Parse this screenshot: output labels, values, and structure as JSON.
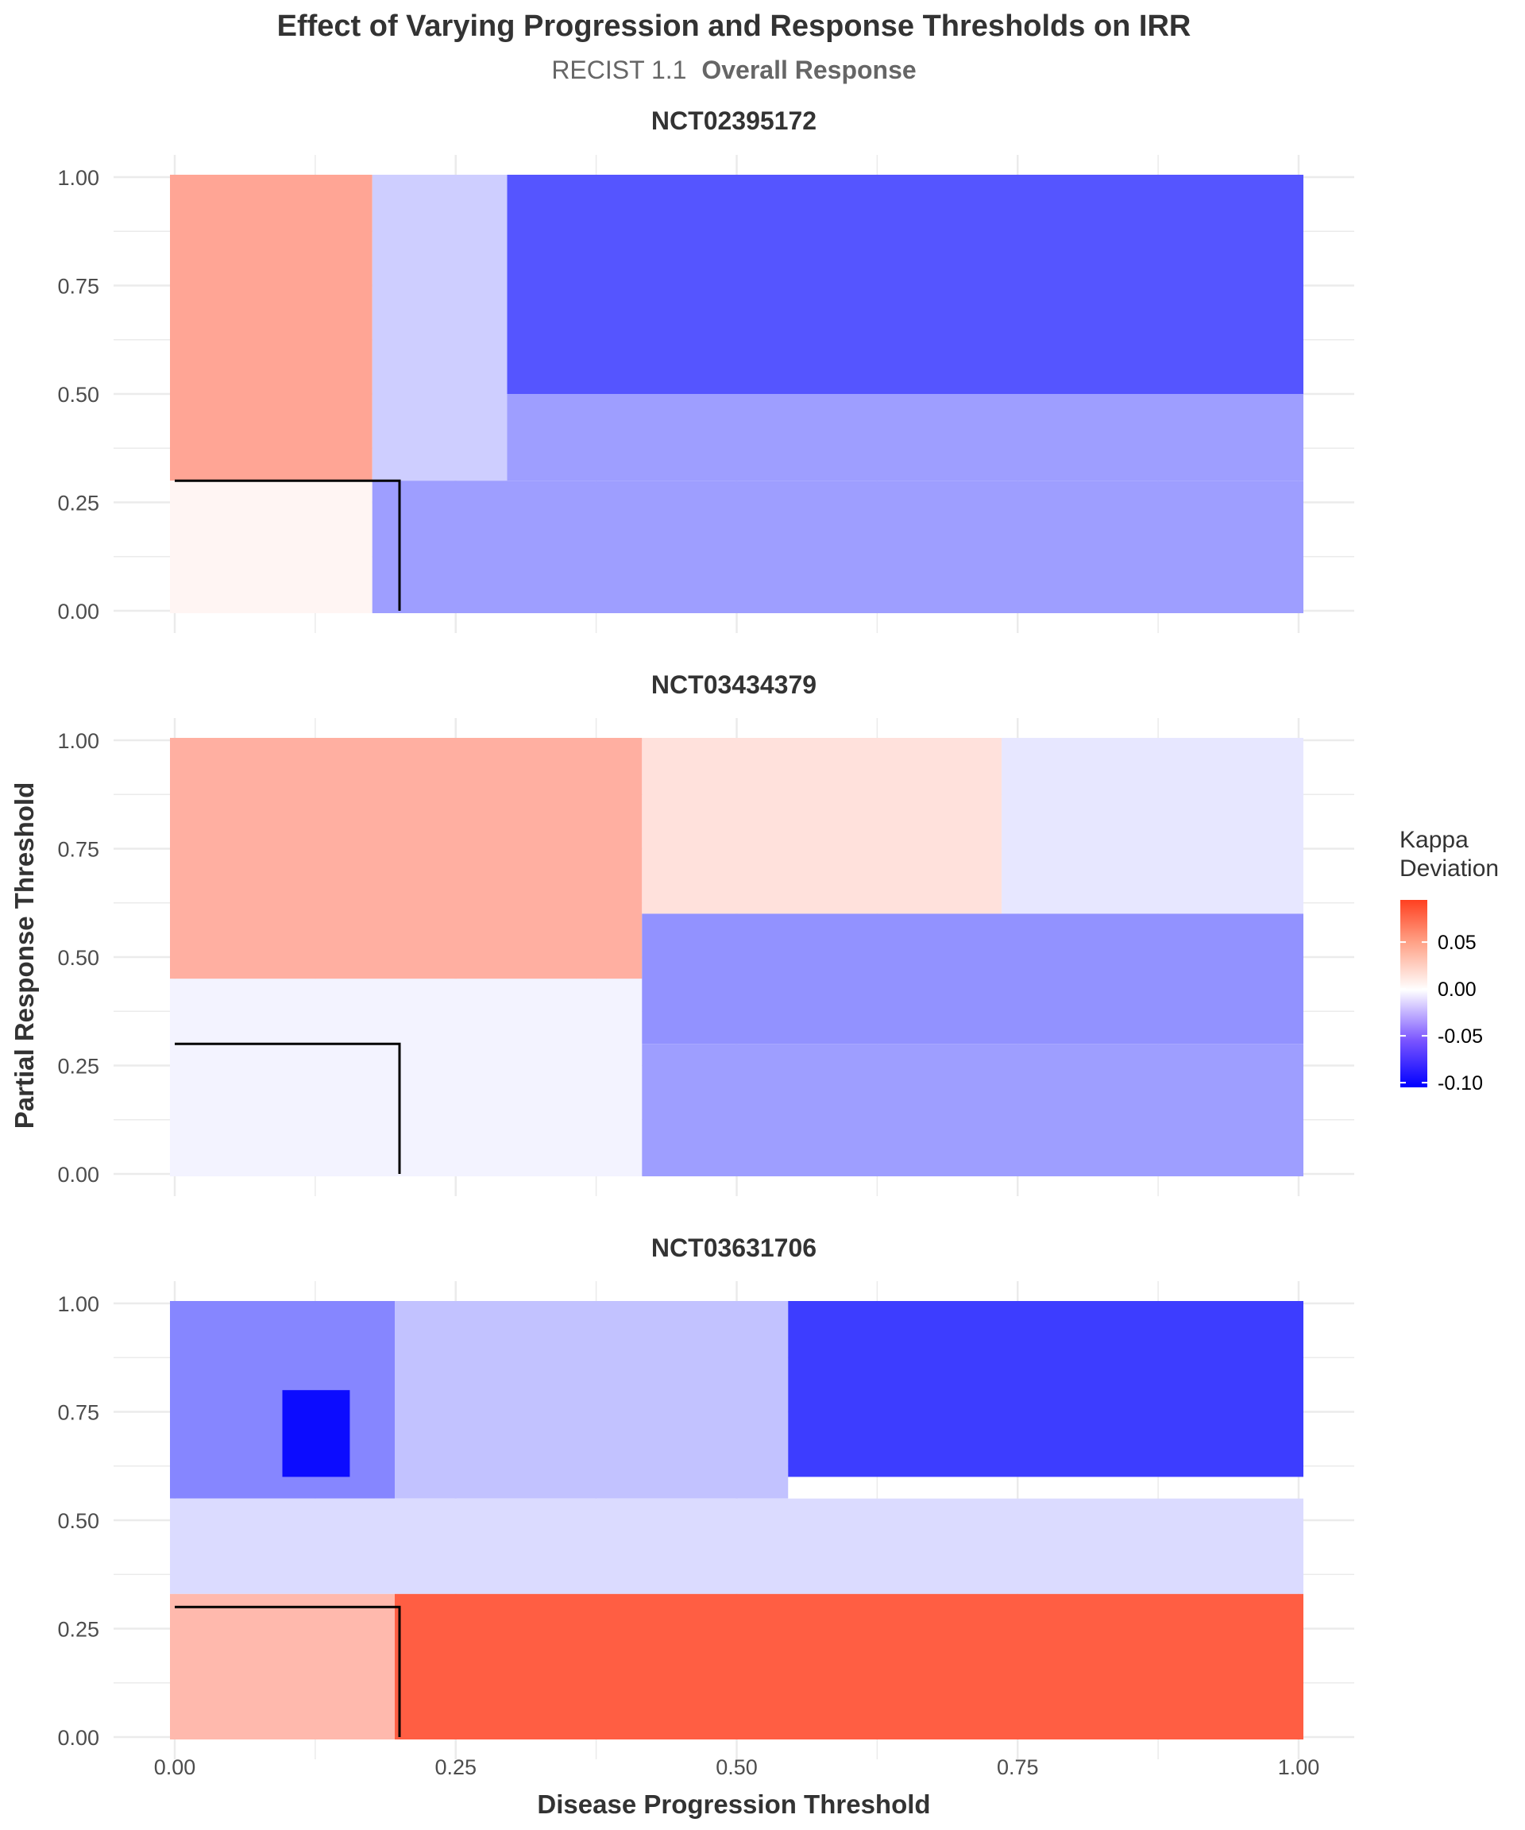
{
  "chart_data": {
    "type": "heatmap",
    "title": "Effect of Varying Progression and Response Thresholds on IRR",
    "subtitle_plain": "RECIST 1.1",
    "subtitle_bold": "Overall Response",
    "xlabel": "Disease Progression Threshold",
    "ylabel": "Partial Response Threshold",
    "xlim": [
      0,
      1
    ],
    "ylim": [
      0,
      1
    ],
    "x_ticks": [
      "0.00",
      "0.25",
      "0.50",
      "0.75",
      "1.00"
    ],
    "y_ticks": [
      "0.00",
      "0.25",
      "0.50",
      "0.75",
      "1.00"
    ],
    "grid": true,
    "legend": {
      "title_line1": "Kappa",
      "title_line2": "Deviation",
      "labels": [
        "0.05",
        "0.00",
        "-0.05",
        "-0.10"
      ],
      "values": [
        0.05,
        0.0,
        -0.05,
        -0.1
      ],
      "min": -0.105,
      "max": 0.095,
      "placement": "right",
      "low_color": "#0000FF",
      "mid_color": "#FFFFFF",
      "high_color": "#FF4020"
    },
    "reference_point": {
      "x": 0.2,
      "y": 0.3
    },
    "panels": [
      {
        "name": "NCT02395172",
        "regions": [
          {
            "x": [
              0.0,
              0.18
            ],
            "y": [
              0.3,
              1.0
            ],
            "value": 0.045
          },
          {
            "x": [
              0.0,
              0.18
            ],
            "y": [
              0.0,
              0.3
            ],
            "value": 0.005
          },
          {
            "x": [
              0.18,
              0.3
            ],
            "y": [
              0.3,
              1.0
            ],
            "value": -0.02
          },
          {
            "x": [
              0.3,
              1.0
            ],
            "y": [
              0.5,
              1.0
            ],
            "value": -0.07
          },
          {
            "x": [
              0.3,
              1.0
            ],
            "y": [
              0.3,
              0.5
            ],
            "value": -0.04
          },
          {
            "x": [
              0.18,
              1.0
            ],
            "y": [
              0.0,
              0.3
            ],
            "value": -0.04
          }
        ]
      },
      {
        "name": "NCT03434379",
        "regions": [
          {
            "x": [
              0.0,
              0.42
            ],
            "y": [
              0.45,
              1.0
            ],
            "value": 0.04
          },
          {
            "x": [
              0.0,
              0.42
            ],
            "y": [
              0.0,
              0.45
            ],
            "value": -0.005
          },
          {
            "x": [
              0.42,
              0.74
            ],
            "y": [
              0.6,
              1.0
            ],
            "value": 0.015
          },
          {
            "x": [
              0.74,
              1.0
            ],
            "y": [
              0.6,
              1.0
            ],
            "value": -0.01
          },
          {
            "x": [
              0.42,
              1.0
            ],
            "y": [
              0.3,
              0.6
            ],
            "value": -0.045
          },
          {
            "x": [
              0.42,
              1.0
            ],
            "y": [
              0.0,
              0.3
            ],
            "value": -0.04
          }
        ]
      },
      {
        "name": "NCT03631706",
        "regions": [
          {
            "x": [
              0.0,
              0.2
            ],
            "y": [
              0.55,
              1.0
            ],
            "value": -0.05
          },
          {
            "x": [
              0.1,
              0.16
            ],
            "y": [
              0.6,
              0.8
            ],
            "value": -0.1
          },
          {
            "x": [
              0.2,
              0.55
            ],
            "y": [
              0.55,
              1.0
            ],
            "value": -0.025
          },
          {
            "x": [
              0.55,
              1.0
            ],
            "y": [
              0.6,
              1.0
            ],
            "value": -0.08
          },
          {
            "x": [
              0.0,
              1.0
            ],
            "y": [
              0.33,
              0.55
            ],
            "value": -0.015
          },
          {
            "x": [
              0.0,
              0.2
            ],
            "y": [
              0.0,
              0.33
            ],
            "value": 0.035
          },
          {
            "x": [
              0.2,
              1.0
            ],
            "y": [
              0.0,
              0.33
            ],
            "value": 0.08
          }
        ]
      }
    ]
  }
}
